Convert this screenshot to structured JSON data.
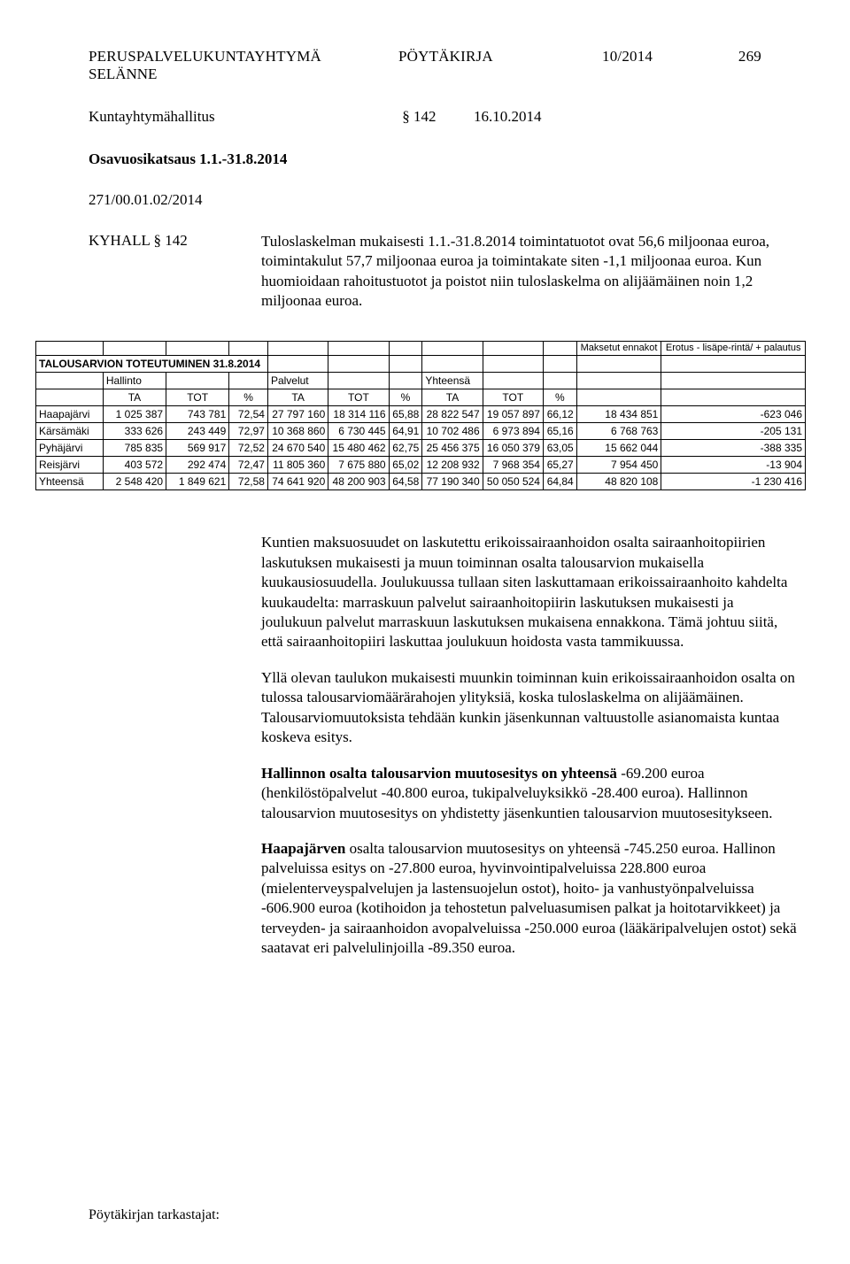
{
  "header": {
    "org_line1": "PERUSPALVELUKUNTAYHTYMÄ",
    "org_line2": "SELÄNNE",
    "doc_type": "PÖYTÄKIRJA",
    "doc_number": "10/2014",
    "page_number": "269"
  },
  "meeting": {
    "body": "Kuntayhtymähallitus",
    "section": "§ 142",
    "date": "16.10.2014"
  },
  "title": "Osavuosikatsaus 1.1.-31.8.2014",
  "case_id": "271/00.01.02/2014",
  "decision_label": "KYHALL § 142",
  "intro": {
    "p1": "Tuloslaskelman mukaisesti 1.1.-31.8.2014 toimintatuotot ovat 56,6 miljoonaa euroa, toimintakulut 57,7 miljoonaa euroa ja toimintakate siten -1,1 miljoonaa euroa. Kun huomioidaan rahoitustuotot ja poistot niin tuloslaskelma on alijäämäinen noin 1,2 miljoonaa euroa."
  },
  "table": {
    "caption": "TALOUSARVION TOTEUTUMINEN 31.8.2014",
    "top_headers": {
      "hallinto": "Hallinto",
      "palvelut": "Palvelut",
      "yhteensa": "Yhteensä"
    },
    "right_headers": {
      "maksetut": "Maksetut ennakot",
      "erotus": "Erotus - lisäpe-rintä/ + palautus"
    },
    "col_labels": {
      "ta": "TA",
      "tot": "TOT",
      "pct": "%"
    },
    "rows": [
      {
        "label": "Haapajärvi",
        "h_ta": "1 025 387",
        "h_tot": "743 781",
        "h_pct": "72,54",
        "p_ta": "27 797 160",
        "p_tot": "18 314 116",
        "p_pct": "65,88",
        "y_ta": "28 822 547",
        "y_tot": "19 057 897",
        "y_pct": "66,12",
        "paid": "18 434 851",
        "diff": "-623 046"
      },
      {
        "label": "Kärsämäki",
        "h_ta": "333 626",
        "h_tot": "243 449",
        "h_pct": "72,97",
        "p_ta": "10 368 860",
        "p_tot": "6 730 445",
        "p_pct": "64,91",
        "y_ta": "10 702 486",
        "y_tot": "6 973 894",
        "y_pct": "65,16",
        "paid": "6 768 763",
        "diff": "-205 131"
      },
      {
        "label": "Pyhäjärvi",
        "h_ta": "785 835",
        "h_tot": "569 917",
        "h_pct": "72,52",
        "p_ta": "24 670 540",
        "p_tot": "15 480 462",
        "p_pct": "62,75",
        "y_ta": "25 456 375",
        "y_tot": "16 050 379",
        "y_pct": "63,05",
        "paid": "15 662 044",
        "diff": "-388 335"
      },
      {
        "label": "Reisjärvi",
        "h_ta": "403 572",
        "h_tot": "292 474",
        "h_pct": "72,47",
        "p_ta": "11 805 360",
        "p_tot": "7 675 880",
        "p_pct": "65,02",
        "y_ta": "12 208 932",
        "y_tot": "7 968 354",
        "y_pct": "65,27",
        "paid": "7 954 450",
        "diff": "-13 904"
      },
      {
        "label": "Yhteensä",
        "h_ta": "2 548 420",
        "h_tot": "1 849 621",
        "h_pct": "72,58",
        "p_ta": "74 641 920",
        "p_tot": "48 200 903",
        "p_pct": "64,58",
        "y_ta": "77 190 340",
        "y_tot": "50 050 524",
        "y_pct": "64,84",
        "paid": "48 820 108",
        "diff": "-1 230 416"
      }
    ],
    "font_family": "Arial",
    "font_size_pt": 9,
    "border_color": "#000000",
    "background_color": "#ffffff"
  },
  "body": {
    "p2": "Kuntien maksuosuudet on laskutettu erikoissairaanhoidon osalta sairaanhoitopiirien laskutuksen mukaisesti ja muun toiminnan osalta talousarvion mukaisella kuukausiosuudella. Joulukuussa tullaan siten laskuttamaan erikoissairaanhoito kahdelta kuukaudelta: marraskuun palvelut sairaanhoitopiirin laskutuksen mukaisesti ja joulukuun palvelut marraskuun laskutuksen mukaisena ennakkona. Tämä johtuu siitä, että sairaanhoitopiiri laskuttaa joulukuun hoidosta vasta tammikuussa.",
    "p3": "Yllä olevan taulukon mukaisesti muunkin toiminnan kuin erikoissairaanhoidon osalta on tulossa talousarviomäärärahojen ylityksiä, koska tuloslaskelma on alijäämäinen. Talousarviomuutoksista tehdään kunkin jäsenkunnan valtuustolle asianomaista kuntaa koskeva esitys.",
    "p4a": "Hallinnon osalta talousarvion muutosesitys on yhteensä ",
    "p4b": "-69.200 euroa (henkilöstöpalvelut -40.800 euroa, tukipalveluyksikkö -28.400 euroa). Hallinnon talousarvion muutosesitys on yhdistetty jäsenkuntien talousarvion muutosesitykseen.",
    "p5a": "Haapajärven ",
    "p5b": "osalta talousarvion muutosesitys on yhteensä -745.250 euroa. Hallinon palveluissa esitys on -27.800 euroa, hyvinvointipalveluissa 228.800 euroa (mielenterveyspalvelujen ja lastensuojelun ostot), hoito- ja vanhustyönpalveluissa -606.900 euroa (kotihoidon ja tehostetun palveluasumisen palkat ja hoitotarvikkeet) ja terveyden- ja sairaanhoidon avopalveluissa -250.000 euroa (lääkäripalvelujen ostot) sekä saatavat eri palvelulinjoilla -89.350 euroa."
  },
  "footer": "Pöytäkirjan tarkastajat:",
  "colors": {
    "text": "#000000",
    "table_border": "#000000",
    "background": "#ffffff"
  },
  "typography": {
    "body_font": "Times New Roman",
    "body_size_pt": 12,
    "table_font": "Arial",
    "table_size_pt": 9
  }
}
